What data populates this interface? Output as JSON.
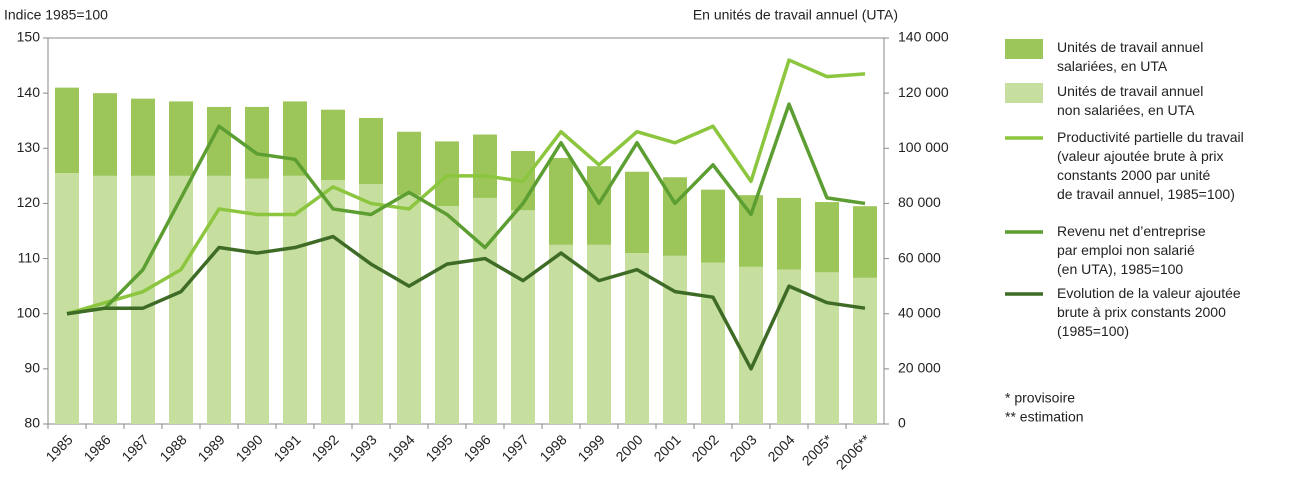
{
  "chart_data": {
    "type": "combo",
    "y_label": "Indice 1985=100",
    "y2_label": "En unités de travail annuel (UTA)",
    "categories": [
      "1985",
      "1986",
      "1987",
      "1988",
      "1989",
      "1990",
      "1991",
      "1992",
      "1993",
      "1994",
      "1995",
      "1996",
      "1997",
      "1998",
      "1999",
      "2000",
      "2001",
      "2002",
      "2003",
      "2004",
      "2005*",
      "2006**"
    ],
    "ylim": [
      80,
      150
    ],
    "yticks": [
      80,
      90,
      100,
      110,
      120,
      130,
      140,
      150
    ],
    "y2lim": [
      0,
      140000
    ],
    "y2ticks": [
      0,
      {
        "value": 20000,
        "label": "20 000"
      },
      {
        "value": 40000,
        "label": "40 000"
      },
      {
        "value": 60000,
        "label": "60 000"
      },
      {
        "value": 80000,
        "label": "80 000"
      },
      {
        "value": 100000,
        "label": "100 000"
      },
      {
        "value": 120000,
        "label": "120 000"
      },
      {
        "value": 140000,
        "label": "140 000"
      }
    ],
    "series": [
      {
        "name": "Unités de travail annuel\nnon salariées, en UTA",
        "type": "bar",
        "axis": "y2",
        "color": "#c6df9f",
        "values": [
          91000,
          90000,
          90000,
          90000,
          90000,
          89000,
          90000,
          88500,
          87000,
          83000,
          79000,
          82000,
          77500,
          65000,
          65000,
          62000,
          61000,
          58500,
          57000,
          56000,
          55000,
          53000
        ]
      },
      {
        "name": "Unités de travail annuel\nsalariées, en UTA",
        "type": "bar",
        "axis": "y2",
        "color": "#9dc65a",
        "values": [
          31000,
          30000,
          28000,
          27000,
          25000,
          26000,
          27000,
          25500,
          24000,
          23000,
          23500,
          23000,
          21500,
          31500,
          28500,
          29500,
          28500,
          26500,
          26000,
          26000,
          25500,
          26000
        ]
      },
      {
        "name": "Productivité partielle du travail\n(valeur ajoutée brute à prix\nconstants 2000 par unité\nde travail annuel, 1985=100)",
        "type": "line",
        "color": "#8cc63f",
        "values": [
          100,
          102,
          104,
          108,
          119,
          118,
          118,
          123,
          120,
          119,
          125,
          125,
          124,
          133,
          127,
          133,
          131,
          134,
          124,
          146,
          143,
          143.5
        ]
      },
      {
        "name": "Revenu net d’entreprise\npar emploi non salarié\n(en UTA), 1985=100",
        "type": "line",
        "color": "#5c9e31",
        "values": [
          100,
          101,
          108,
          121,
          134,
          129,
          128,
          119,
          118,
          122,
          118,
          112,
          120,
          131,
          120,
          131,
          120,
          127,
          118,
          138,
          121,
          120
        ]
      },
      {
        "name": "Evolution de la valeur ajoutée\nbrute à prix constants 2000\n(1985=100)",
        "type": "line",
        "color": "#3e6b25",
        "values": [
          100,
          101,
          101,
          104,
          112,
          111,
          112,
          114,
          109,
          105,
          109,
          110,
          106,
          111,
          106,
          108,
          104,
          103,
          90,
          105,
          102,
          101
        ]
      }
    ],
    "notes": [
      "*  provisoire",
      "** estimation"
    ]
  }
}
